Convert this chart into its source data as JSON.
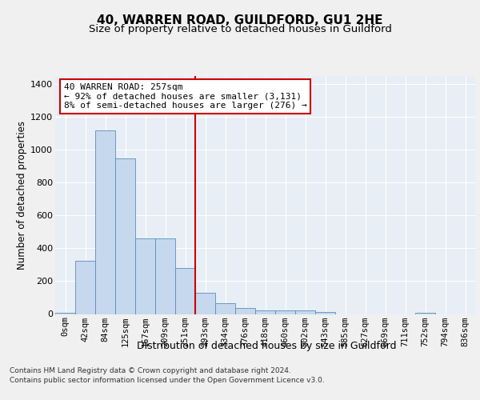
{
  "title": "40, WARREN ROAD, GUILDFORD, GU1 2HE",
  "subtitle": "Size of property relative to detached houses in Guildford",
  "xlabel": "Distribution of detached houses by size in Guildford",
  "ylabel": "Number of detached properties",
  "footer_line1": "Contains HM Land Registry data © Crown copyright and database right 2024.",
  "footer_line2": "Contains public sector information licensed under the Open Government Licence v3.0.",
  "bar_color": "#c5d8ee",
  "bar_edge_color": "#5b8db8",
  "vline_color": "#cc0000",
  "vline_x_index": 6,
  "annotation_line1": "40 WARREN ROAD: 257sqm",
  "annotation_line2": "← 92% of detached houses are smaller (3,131)",
  "annotation_line3": "8% of semi-detached houses are larger (276) →",
  "annotation_box_facecolor": "#ffffff",
  "annotation_box_edgecolor": "#cc0000",
  "categories": [
    "0sqm",
    "42sqm",
    "84sqm",
    "125sqm",
    "167sqm",
    "209sqm",
    "251sqm",
    "293sqm",
    "334sqm",
    "376sqm",
    "418sqm",
    "460sqm",
    "502sqm",
    "543sqm",
    "585sqm",
    "627sqm",
    "669sqm",
    "711sqm",
    "752sqm",
    "794sqm",
    "836sqm"
  ],
  "values": [
    5,
    325,
    1120,
    950,
    460,
    460,
    280,
    130,
    65,
    35,
    20,
    20,
    20,
    12,
    0,
    0,
    0,
    0,
    5,
    0,
    0
  ],
  "ylim": [
    0,
    1450
  ],
  "yticks": [
    0,
    200,
    400,
    600,
    800,
    1000,
    1200,
    1400
  ],
  "fig_bg_color": "#f0f0f0",
  "plot_bg_color": "#e8eef5",
  "grid_color": "#ffffff",
  "title_fontsize": 11,
  "subtitle_fontsize": 9.5,
  "tick_fontsize": 7.5,
  "ylabel_fontsize": 8.5,
  "xlabel_fontsize": 9,
  "footer_fontsize": 6.5,
  "annotation_fontsize": 8
}
